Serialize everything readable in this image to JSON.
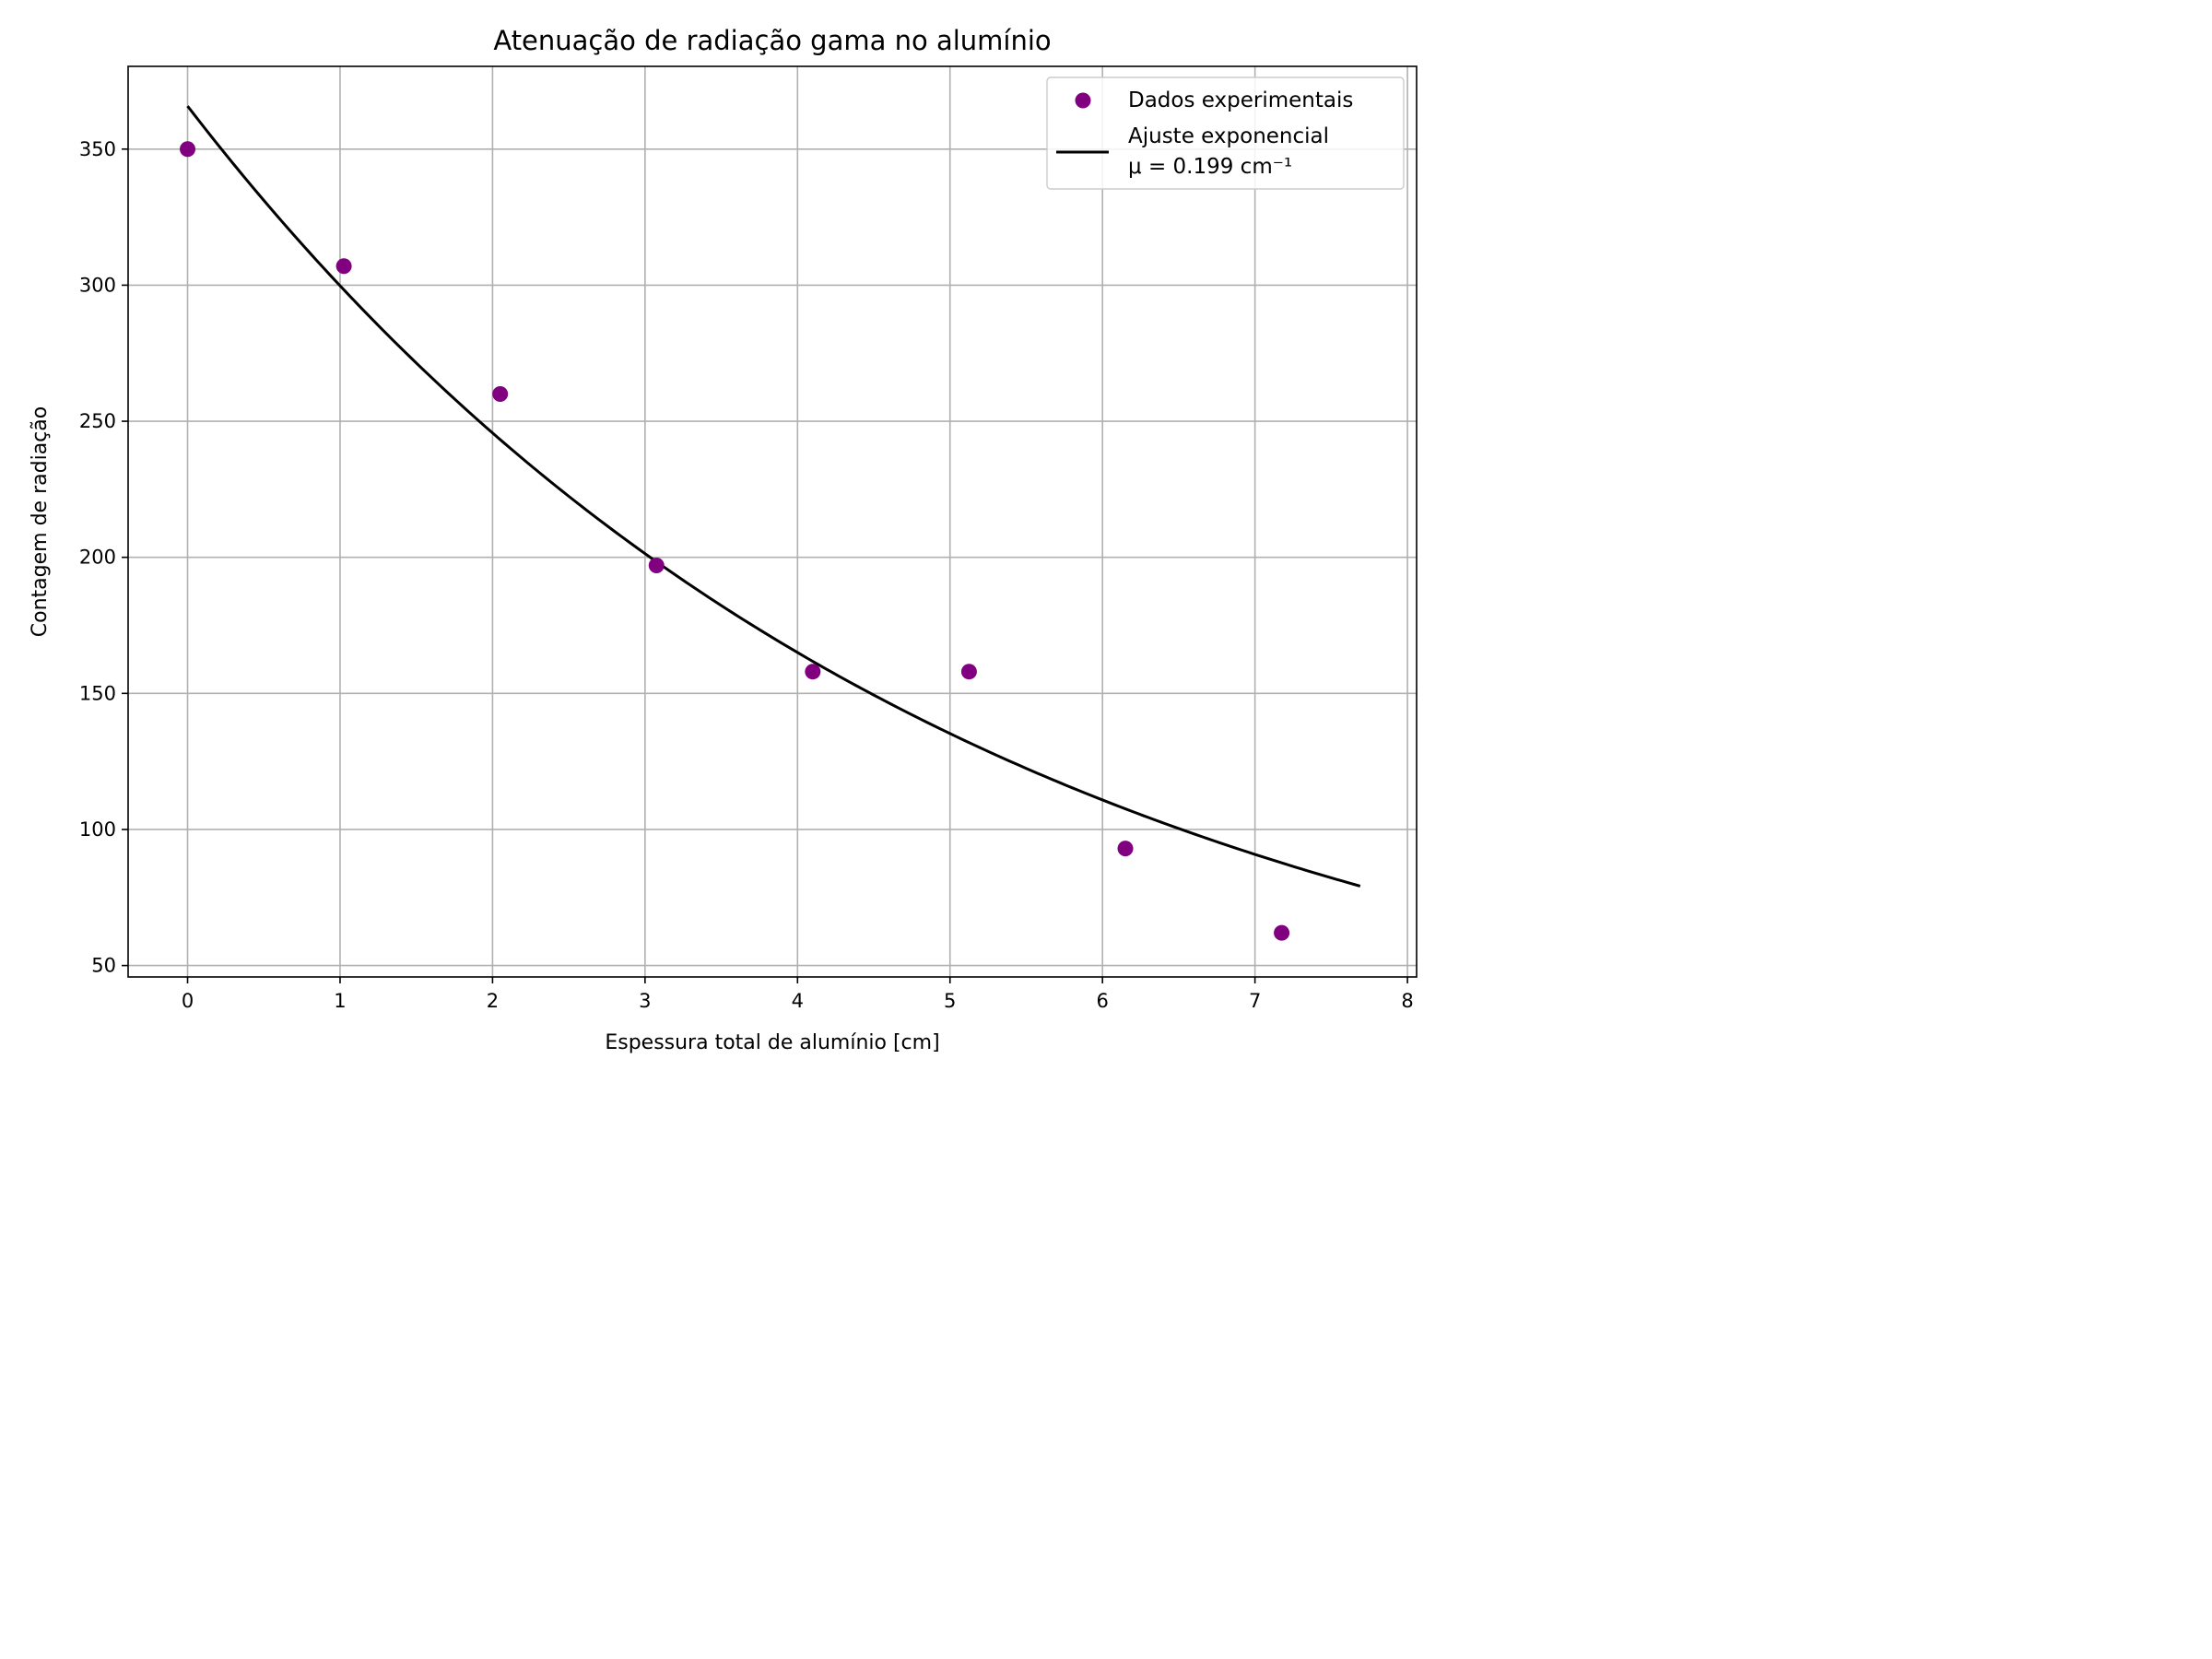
{
  "chart_data": {
    "type": "scatter",
    "title": "Atenuação de radiação gama no alumínio",
    "xlabel": "Espessura total de alumínio [cm]",
    "ylabel": "Contagem de radiação",
    "xlim": [
      -0.39,
      8.06
    ],
    "ylim": [
      45.8,
      380.4
    ],
    "x_ticks": [
      0,
      1,
      2,
      3,
      4,
      5,
      6,
      7,
      8
    ],
    "x_tick_labels": [
      "0",
      "1",
      "2",
      "3",
      "4",
      "5",
      "6",
      "7",
      "8"
    ],
    "y_ticks": [
      50,
      100,
      150,
      200,
      250,
      300,
      350
    ],
    "y_tick_labels": [
      "50",
      "100",
      "150",
      "200",
      "250",
      "300",
      "350"
    ],
    "grid": true,
    "legend_position": "top-right",
    "series": [
      {
        "name": "Dados experimentais",
        "kind": "scatter",
        "color": "#800080",
        "x": [
          0.0,
          1.025,
          2.05,
          3.075,
          4.1,
          5.125,
          6.15,
          7.175
        ],
        "y": [
          350,
          307,
          260,
          197,
          158,
          158,
          93,
          62
        ]
      },
      {
        "name": "Ajuste exponencial",
        "name_line2": "μ = 0.199 cm⁻¹",
        "kind": "line",
        "color": "#000000",
        "model": "exponential",
        "A": 365.8,
        "mu": 0.199,
        "x_range": [
          0.0,
          7.69
        ]
      }
    ]
  }
}
